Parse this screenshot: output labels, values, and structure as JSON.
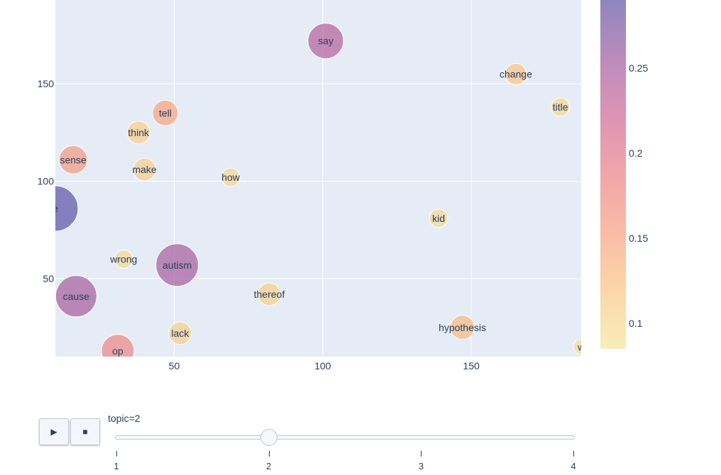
{
  "chart_data": {
    "type": "scatter",
    "subtype": "bubble",
    "xlim": [
      10,
      187
    ],
    "ylim": [
      10,
      193
    ],
    "xticks": [
      50,
      100,
      150
    ],
    "yticks": [
      50,
      100,
      150
    ],
    "points": [
      {
        "label": "say",
        "x": 101,
        "y": 172,
        "size": 50,
        "color_value": 0.24
      },
      {
        "label": "change",
        "x": 165,
        "y": 155,
        "size": 30,
        "color_value": 0.12
      },
      {
        "label": "title",
        "x": 180,
        "y": 138,
        "size": 26,
        "color_value": 0.1
      },
      {
        "label": "tell",
        "x": 47,
        "y": 135,
        "size": 36,
        "color_value": 0.15
      },
      {
        "label": "think",
        "x": 38,
        "y": 125,
        "size": 32,
        "color_value": 0.11
      },
      {
        "label": "sense",
        "x": 16,
        "y": 111,
        "size": 40,
        "color_value": 0.16
      },
      {
        "label": "make",
        "x": 40,
        "y": 106,
        "size": 32,
        "color_value": 0.11
      },
      {
        "label": "how",
        "x": 69,
        "y": 102,
        "size": 26,
        "color_value": 0.1
      },
      {
        "label": "e",
        "x": 10,
        "y": 86,
        "size": 64,
        "color_value": 0.32
      },
      {
        "label": "kid",
        "x": 139,
        "y": 81,
        "size": 26,
        "color_value": 0.1
      },
      {
        "label": "wrong",
        "x": 33,
        "y": 60,
        "size": 26,
        "color_value": 0.1
      },
      {
        "label": "autism",
        "x": 51,
        "y": 57,
        "size": 60,
        "color_value": 0.25
      },
      {
        "label": "cause",
        "x": 17,
        "y": 41,
        "size": 58,
        "color_value": 0.25
      },
      {
        "label": "thereof",
        "x": 82,
        "y": 42,
        "size": 32,
        "color_value": 0.11
      },
      {
        "label": "hypothesis",
        "x": 147,
        "y": 25,
        "size": 34,
        "color_value": 0.13
      },
      {
        "label": "lack",
        "x": 52,
        "y": 22,
        "size": 32,
        "color_value": 0.11
      },
      {
        "label": "op",
        "x": 31,
        "y": 13,
        "size": 46,
        "color_value": 0.18
      },
      {
        "label": "w",
        "x": 187,
        "y": 15,
        "size": 22,
        "color_value": 0.09
      }
    ],
    "colorscale": {
      "range": [
        0.085,
        0.29
      ],
      "ticks": [
        0.1,
        0.15,
        0.2,
        0.25
      ],
      "tick_labels": [
        "0.1",
        "0.15",
        "0.2",
        "0.25"
      ],
      "stops": [
        {
          "at": 0.0,
          "color": "#f3e79b"
        },
        {
          "at": 0.17,
          "color": "#fac484"
        },
        {
          "at": 0.33,
          "color": "#f8a07e"
        },
        {
          "at": 0.5,
          "color": "#eb7f86"
        },
        {
          "at": 0.67,
          "color": "#ce6693"
        },
        {
          "at": 0.83,
          "color": "#a059a0"
        },
        {
          "at": 1.0,
          "color": "#5c53a5"
        }
      ]
    },
    "grid": true,
    "plot_background": "#e5ecf6",
    "marker_opacity": 0.7
  },
  "animation": {
    "play_icon": "▶",
    "stop_icon": "■",
    "current_prefix": "topic=",
    "current_value": "2",
    "steps": [
      "1",
      "2",
      "3",
      "4"
    ],
    "active_step": 1
  }
}
